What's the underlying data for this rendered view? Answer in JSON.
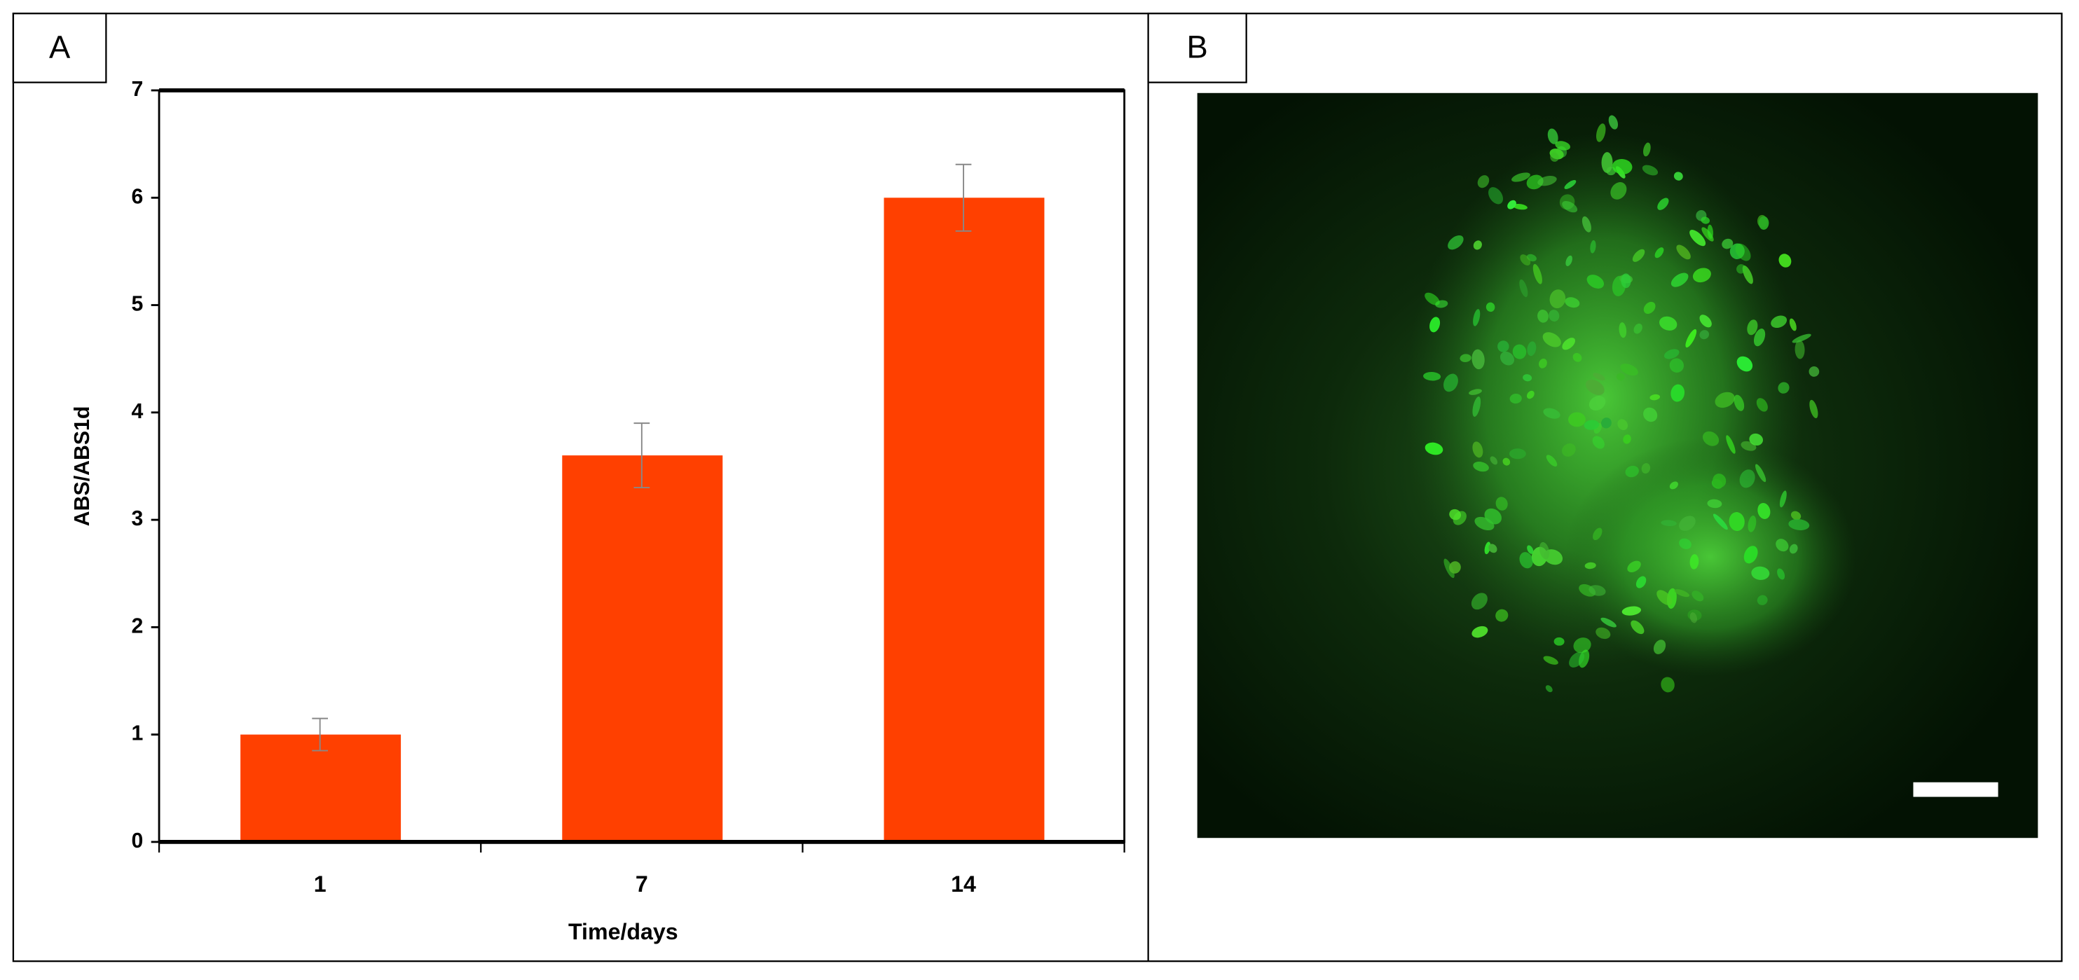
{
  "panel_labels": [
    "A",
    "B"
  ],
  "chart_data": {
    "type": "bar",
    "categories": [
      "1",
      "7",
      "14"
    ],
    "values": [
      1,
      3.6,
      6
    ],
    "errors": [
      0.15,
      0.3,
      0.31
    ],
    "color": "#ff4000",
    "ylim": [
      0,
      7
    ],
    "yticks": [
      0,
      1,
      2,
      3,
      4,
      5,
      6,
      7
    ],
    "x_label": "Time/days",
    "y_label": "ABS/ABS1d"
  }
}
